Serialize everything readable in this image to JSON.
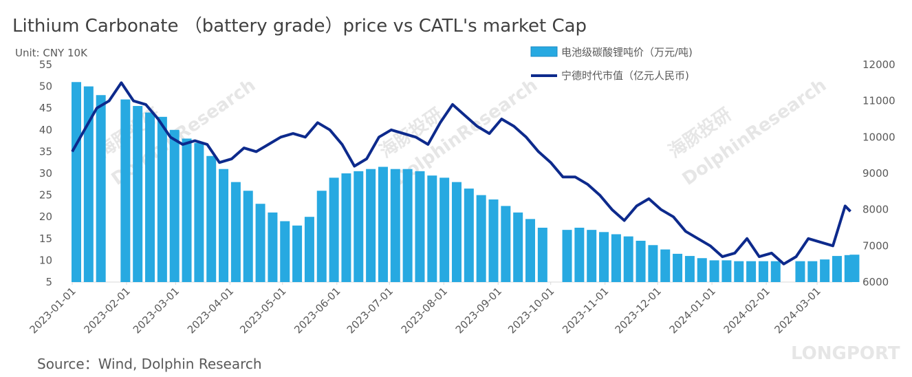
{
  "chart_data": {
    "type": "combo",
    "title": "Lithium Carbonate （battery grade）price  vs CATL's market Cap",
    "unit_label": "Unit: CNY 10K",
    "source": "Source：Wind, Dolphin Research",
    "watermarks": [
      "海豚投研",
      "DolphinResearch",
      "LONGPORT"
    ],
    "legend": "top-right",
    "x": [
      "2023-01-01",
      "2023-01-08",
      "2023-01-15",
      "2023-01-22",
      "2023-01-29",
      "2023-02-05",
      "2023-02-12",
      "2023-02-19",
      "2023-02-26",
      "2023-03-05",
      "2023-03-12",
      "2023-03-19",
      "2023-03-26",
      "2023-04-02",
      "2023-04-09",
      "2023-04-16",
      "2023-04-23",
      "2023-04-30",
      "2023-05-07",
      "2023-05-14",
      "2023-05-21",
      "2023-05-28",
      "2023-06-04",
      "2023-06-11",
      "2023-06-18",
      "2023-06-25",
      "2023-07-02",
      "2023-07-09",
      "2023-07-16",
      "2023-07-23",
      "2023-07-30",
      "2023-08-06",
      "2023-08-13",
      "2023-08-20",
      "2023-08-27",
      "2023-09-03",
      "2023-09-10",
      "2023-09-17",
      "2023-09-24",
      "2023-10-01",
      "2023-10-08",
      "2023-10-15",
      "2023-10-22",
      "2023-10-29",
      "2023-11-05",
      "2023-11-12",
      "2023-11-19",
      "2023-11-26",
      "2023-12-03",
      "2023-12-10",
      "2023-12-17",
      "2023-12-24",
      "2023-12-31",
      "2024-01-07",
      "2024-01-14",
      "2024-01-21",
      "2024-01-28",
      "2024-02-04",
      "2024-02-11",
      "2024-02-18",
      "2024-02-25",
      "2024-03-03",
      "2024-03-10",
      "2024-03-17",
      "2024-03-20"
    ],
    "xlim": [
      "2023-01-01",
      "2024-03-21"
    ],
    "xticks": [
      "2023-01-01",
      "2023-02-01",
      "2023-03-01",
      "2023-04-01",
      "2023-05-01",
      "2023-06-01",
      "2023-07-01",
      "2023-08-01",
      "2023-09-01",
      "2023-10-01",
      "2023-11-01",
      "2023-12-01",
      "2024-01-01",
      "2024-02-01",
      "2024-03-01"
    ],
    "ylim": [
      5,
      55
    ],
    "yticks": [
      5,
      10,
      15,
      20,
      25,
      30,
      35,
      40,
      45,
      50,
      55
    ],
    "y2lim": [
      6000,
      12000
    ],
    "y2ticks": [
      6000,
      7000,
      8000,
      9000,
      10000,
      11000,
      12000
    ],
    "series": [
      {
        "name": "电池级碳酸锂吨价（万元/吨)",
        "type": "bar",
        "color": "#27a9e1",
        "values": [
          51,
          50,
          48,
          null,
          47,
          45.5,
          44,
          43,
          40,
          38,
          37,
          34,
          31,
          28,
          26,
          23,
          21,
          19,
          18,
          20,
          26,
          29,
          30,
          30.5,
          31,
          31.5,
          31,
          31,
          30.5,
          29.5,
          29,
          28,
          26.5,
          25,
          24,
          22.5,
          21,
          19.5,
          17.5,
          null,
          17,
          17.5,
          17,
          16.5,
          16,
          15.5,
          14.5,
          13.5,
          12.5,
          11.5,
          11,
          10.5,
          10,
          10,
          9.8,
          9.8,
          9.8,
          9.8,
          null,
          9.8,
          9.8,
          10.2,
          11,
          11.2,
          11.3
        ]
      },
      {
        "name": "宁德时代市值（亿元人民币)",
        "type": "line",
        "axis": "y2",
        "color": "#0d2a8c",
        "values": [
          9600,
          10200,
          10800,
          11000,
          11500,
          11000,
          10900,
          10500,
          10000,
          9800,
          9900,
          9800,
          9300,
          9400,
          9700,
          9600,
          9800,
          10000,
          10100,
          10000,
          10400,
          10200,
          9800,
          9200,
          9400,
          10000,
          10200,
          10100,
          10000,
          9800,
          10400,
          10900,
          10600,
          10300,
          10100,
          10500,
          10300,
          10000,
          9600,
          9300,
          8900,
          8900,
          8700,
          8400,
          8000,
          7700,
          8100,
          8300,
          8000,
          7800,
          7400,
          7200,
          7000,
          6700,
          6800,
          7200,
          6700,
          6800,
          6500,
          6700,
          7200,
          7100,
          7000,
          8100,
          7950
        ]
      }
    ]
  }
}
